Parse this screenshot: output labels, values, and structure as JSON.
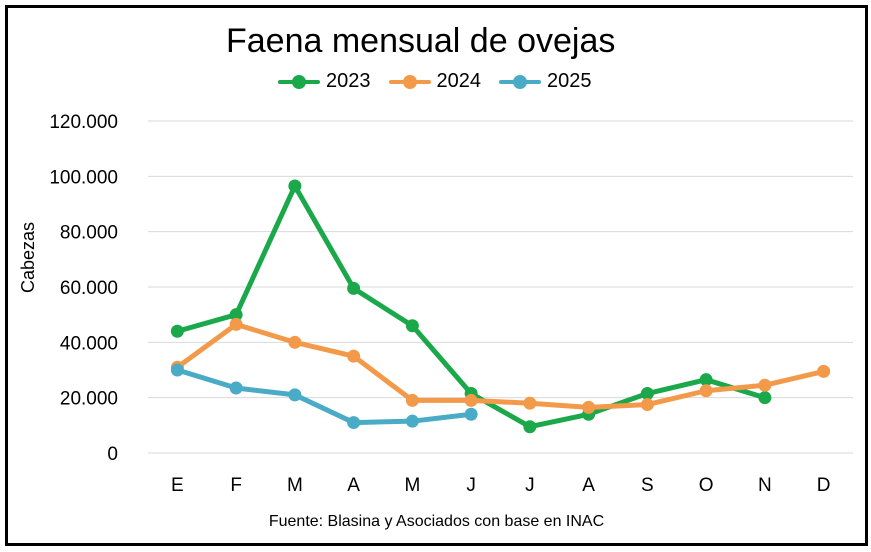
{
  "chart_data": {
    "type": "line",
    "title": "Faena mensual de ovejas",
    "ylabel": "Cabezas",
    "xlabel": "",
    "source": "Fuente: Blasina y Asociados con base en INAC",
    "categories": [
      "E",
      "F",
      "M",
      "A",
      "M",
      "J",
      "J",
      "A",
      "S",
      "O",
      "N",
      "D"
    ],
    "ylim": [
      0,
      120000
    ],
    "yticks": [
      0,
      20000,
      40000,
      60000,
      80000,
      100000,
      120000
    ],
    "ytick_labels": [
      "0",
      "20.000",
      "40.000",
      "60.000",
      "80.000",
      "100.000",
      "120.000"
    ],
    "grid": true,
    "legend_position": "top",
    "series": [
      {
        "name": "2023",
        "color": "#1aa84a",
        "values": [
          44000,
          50000,
          96500,
          59500,
          46000,
          21500,
          9500,
          14000,
          21500,
          26500,
          20000,
          null
        ]
      },
      {
        "name": "2024",
        "color": "#f39a4a",
        "values": [
          31000,
          46500,
          40000,
          35000,
          19000,
          19000,
          18000,
          16500,
          17500,
          22500,
          24500,
          29500
        ]
      },
      {
        "name": "2025",
        "color": "#4aabc6",
        "values": [
          30000,
          23500,
          21000,
          11000,
          11500,
          14000,
          null,
          null,
          null,
          null,
          null,
          null
        ]
      }
    ]
  }
}
